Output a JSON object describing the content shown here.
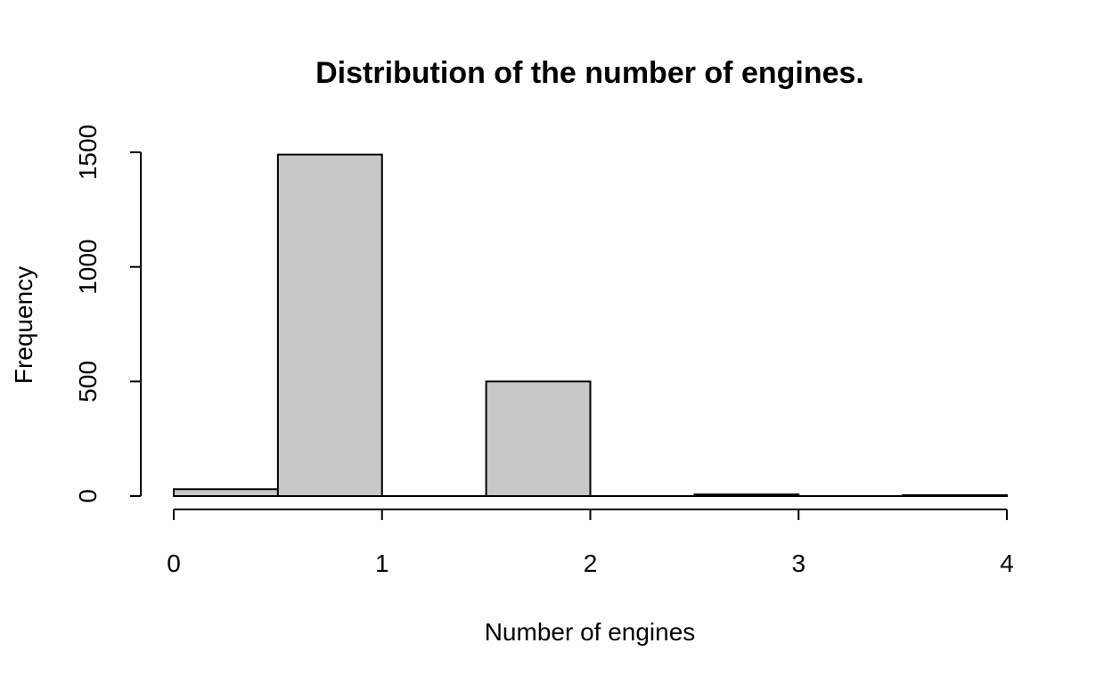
{
  "chart_data": {
    "type": "bar",
    "title": "Distribution of the number of engines.",
    "xlabel": "Number of engines",
    "ylabel": "Frequency",
    "bin_edges": [
      0,
      0.5,
      1,
      1.5,
      2,
      2.5,
      3,
      3.5,
      4
    ],
    "values": [
      30,
      1490,
      0,
      500,
      0,
      7,
      0,
      4
    ],
    "xlim": [
      0,
      4
    ],
    "ylim": [
      0,
      1500
    ],
    "x_ticks": [
      0,
      1,
      2,
      3,
      4
    ],
    "y_ticks": [
      0,
      500,
      1000,
      1500
    ],
    "bar_color": "#c8c8c8",
    "grid": false
  }
}
